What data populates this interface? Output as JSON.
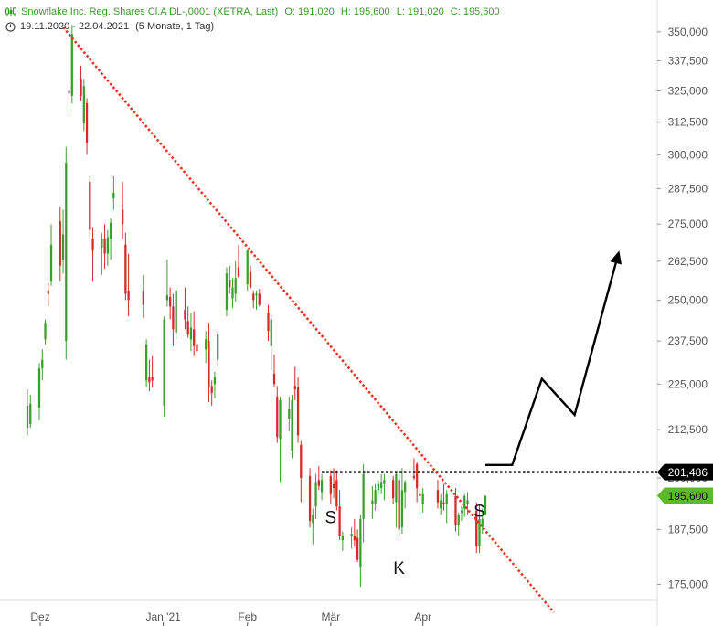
{
  "header": {
    "instrument": "Snowflake Inc. Reg. Shares Cl.A DL-,0001 (XETRA, Last)",
    "open": "O: 191,020",
    "high": "H: 195,600",
    "low": "L: 191,020",
    "close": "C: 195,600",
    "range": "19.11.2020 - 22.04.2021",
    "period": "(5 Monate, 1 Tag)",
    "chart_icon": "candlestick-icon",
    "clock_icon": "clock-icon"
  },
  "colors": {
    "up": "#3aa02c",
    "down": "#d42a2a",
    "trendline": "#e8321e",
    "grid_axis": "#dcdcdc",
    "resistance_tag": "#000000",
    "last_price_tag": "#5cb82c"
  },
  "chart_data": {
    "type": "candlestick",
    "x_ticks": [
      "Dez",
      "Jan '21",
      "Feb",
      "Mär",
      "Apr"
    ],
    "y_ticks": [
      "175,000",
      "187,500",
      "200,000",
      "212,500",
      "225,000",
      "237,500",
      "250,000",
      "262,500",
      "275,000",
      "287,500",
      "300,000",
      "312,500",
      "325,000",
      "337,500",
      "350,000"
    ],
    "ylim": [
      169,
      356
    ],
    "scale": "log",
    "price_tags": [
      {
        "label": "201,486",
        "value": 201.486,
        "style": "resistance"
      },
      {
        "label": "195,600",
        "value": 195.6,
        "style": "last"
      }
    ],
    "annotations": [
      {
        "text": "S",
        "date": "2021-03-01",
        "price": 190.5
      },
      {
        "text": "K",
        "date": "2021-03-24",
        "price": 178.8
      },
      {
        "text": "S",
        "date": "2021-04-20",
        "price": 192.0
      }
    ],
    "resistance_line": {
      "value": 201.486,
      "from": "2021-02-26",
      "to": "2021-06-30"
    },
    "trendline": {
      "from": {
        "date": "2020-12-01",
        "price": 352
      },
      "to": {
        "date": "2021-05-15",
        "price": 169
      }
    },
    "projection_arrow": [
      {
        "date": "2021-04-22",
        "price": 203.3
      },
      {
        "date": "2021-05-01",
        "price": 203.3
      },
      {
        "date": "2021-05-11",
        "price": 226.5
      },
      {
        "date": "2021-05-22",
        "price": 216.5
      },
      {
        "date": "2021-06-06",
        "price": 266
      }
    ],
    "candles": [
      {
        "date": "2020-11-19",
        "o": 213.0,
        "h": 223.5,
        "l": 211.0,
        "c": 219.0
      },
      {
        "date": "2020-11-20",
        "o": 214.0,
        "h": 222.0,
        "l": 213.0,
        "c": 219.5
      },
      {
        "date": "2020-11-23",
        "o": 218.5,
        "h": 231.0,
        "l": 215.0,
        "c": 229.5
      },
      {
        "date": "2020-11-24",
        "o": 229.5,
        "h": 235.0,
        "l": 226.0,
        "c": 232.0
      },
      {
        "date": "2020-11-25",
        "o": 238.0,
        "h": 244.0,
        "l": 236.5,
        "c": 243.0
      },
      {
        "date": "2020-11-26",
        "o": 253.0,
        "h": 255.5,
        "l": 248.0,
        "c": 252.0
      },
      {
        "date": "2020-11-27",
        "o": 256.0,
        "h": 275.0,
        "l": 254.5,
        "c": 268.0
      },
      {
        "date": "2020-11-30",
        "o": 276.0,
        "h": 281.0,
        "l": 256.0,
        "c": 261.0
      },
      {
        "date": "2020-12-01",
        "o": 263.0,
        "h": 280.0,
        "l": 258.5,
        "c": 271.5
      },
      {
        "date": "2020-12-02",
        "o": 237.5,
        "h": 303.0,
        "l": 232.0,
        "c": 297.0
      },
      {
        "date": "2020-12-03",
        "o": 324.0,
        "h": 326.5,
        "l": 316.0,
        "c": 325.0
      },
      {
        "date": "2020-12-04",
        "o": 323.0,
        "h": 353.0,
        "l": 320.0,
        "c": 349.0
      },
      {
        "date": "2020-12-07",
        "o": 330.0,
        "h": 335.5,
        "l": 321.0,
        "c": 323.0
      },
      {
        "date": "2020-12-08",
        "o": 312.0,
        "h": 330.0,
        "l": 309.0,
        "c": 327.0
      },
      {
        "date": "2020-12-09",
        "o": 320.0,
        "h": 322.0,
        "l": 300.0,
        "c": 304.5
      },
      {
        "date": "2020-12-10",
        "o": 290.0,
        "h": 292.0,
        "l": 270.0,
        "c": 273.0
      },
      {
        "date": "2020-12-11",
        "o": 270.0,
        "h": 274.0,
        "l": 256.0,
        "c": 266.0
      },
      {
        "date": "2020-12-14",
        "o": 267.0,
        "h": 272.0,
        "l": 258.0,
        "c": 270.0
      },
      {
        "date": "2020-12-15",
        "o": 270.0,
        "h": 275.0,
        "l": 260.0,
        "c": 265.0
      },
      {
        "date": "2020-12-16",
        "o": 265.0,
        "h": 273.0,
        "l": 261.0,
        "c": 270.5
      },
      {
        "date": "2020-12-17",
        "o": 270.0,
        "h": 277.0,
        "l": 263.0,
        "c": 275.5
      },
      {
        "date": "2020-12-18",
        "o": 284.0,
        "h": 292.0,
        "l": 280.0,
        "c": 286.0
      },
      {
        "date": "2020-12-21",
        "o": 280.0,
        "h": 290.0,
        "l": 270.0,
        "c": 275.0
      },
      {
        "date": "2020-12-22",
        "o": 268.0,
        "h": 272.0,
        "l": 250.0,
        "c": 252.0
      },
      {
        "date": "2020-12-23",
        "o": 253.0,
        "h": 265.0,
        "l": 245.0,
        "c": 250.0
      },
      {
        "date": "2020-12-28",
        "o": 253.0,
        "h": 258.0,
        "l": 244.5,
        "c": 248.5
      },
      {
        "date": "2020-12-29",
        "o": 226.0,
        "h": 238.0,
        "l": 224.0,
        "c": 236.5
      },
      {
        "date": "2020-12-30",
        "o": 227.0,
        "h": 232.0,
        "l": 223.0,
        "c": 225.5
      },
      {
        "date": "2020-12-31",
        "o": 227.0,
        "h": 233.0,
        "l": 224.0,
        "c": 226.0
      },
      {
        "date": "2021-01-04",
        "o": 219.0,
        "h": 245.0,
        "l": 216.0,
        "c": 244.0
      },
      {
        "date": "2021-01-05",
        "o": 250.0,
        "h": 263.0,
        "l": 248.0,
        "c": 251.5
      },
      {
        "date": "2021-01-06",
        "o": 251.0,
        "h": 254.0,
        "l": 244.0,
        "c": 248.0
      },
      {
        "date": "2021-01-07",
        "o": 248.0,
        "h": 252.0,
        "l": 236.0,
        "c": 241.0
      },
      {
        "date": "2021-01-08",
        "o": 240.0,
        "h": 254.0,
        "l": 238.0,
        "c": 253.0
      },
      {
        "date": "2021-01-11",
        "o": 247.0,
        "h": 254.0,
        "l": 241.0,
        "c": 244.0
      },
      {
        "date": "2021-01-12",
        "o": 243.5,
        "h": 248.0,
        "l": 238.5,
        "c": 239.5
      },
      {
        "date": "2021-01-13",
        "o": 238.0,
        "h": 246.0,
        "l": 234.5,
        "c": 241.5
      },
      {
        "date": "2021-01-14",
        "o": 241.0,
        "h": 246.5,
        "l": 233.0,
        "c": 236.0
      },
      {
        "date": "2021-01-15",
        "o": 236.5,
        "h": 239.0,
        "l": 232.5,
        "c": 234.5
      },
      {
        "date": "2021-01-18",
        "o": 235.0,
        "h": 240.5,
        "l": 231.0,
        "c": 238.0
      },
      {
        "date": "2021-01-19",
        "o": 237.5,
        "h": 243.0,
        "l": 220.0,
        "c": 224.0
      },
      {
        "date": "2021-01-20",
        "o": 224.5,
        "h": 226.0,
        "l": 219.0,
        "c": 222.5
      },
      {
        "date": "2021-01-21",
        "o": 225.0,
        "h": 228.5,
        "l": 221.0,
        "c": 227.0
      },
      {
        "date": "2021-01-22",
        "o": 232.0,
        "h": 240.5,
        "l": 230.0,
        "c": 239.5
      },
      {
        "date": "2021-01-25",
        "o": 247.0,
        "h": 260.5,
        "l": 245.0,
        "c": 258.5
      },
      {
        "date": "2021-01-26",
        "o": 256.5,
        "h": 261.0,
        "l": 252.0,
        "c": 254.0
      },
      {
        "date": "2021-01-27",
        "o": 250.5,
        "h": 257.0,
        "l": 247.5,
        "c": 254.0
      },
      {
        "date": "2021-01-28",
        "o": 252.0,
        "h": 262.5,
        "l": 249.5,
        "c": 257.0
      },
      {
        "date": "2021-01-29",
        "o": 260.5,
        "h": 268.0,
        "l": 257.0,
        "c": 257.5
      },
      {
        "date": "2021-02-01",
        "o": 255.0,
        "h": 266.5,
        "l": 253.0,
        "c": 266.0
      },
      {
        "date": "2021-02-02",
        "o": 259.0,
        "h": 261.0,
        "l": 253.5,
        "c": 254.0
      },
      {
        "date": "2021-02-03",
        "o": 252.0,
        "h": 253.0,
        "l": 247.5,
        "c": 250.0
      },
      {
        "date": "2021-02-04",
        "o": 251.5,
        "h": 253.0,
        "l": 247.0,
        "c": 252.0
      },
      {
        "date": "2021-02-05",
        "o": 252.0,
        "h": 253.5,
        "l": 248.0,
        "c": 248.5
      },
      {
        "date": "2021-02-08",
        "o": 246.0,
        "h": 248.5,
        "l": 237.5,
        "c": 240.5
      },
      {
        "date": "2021-02-09",
        "o": 236.0,
        "h": 245.5,
        "l": 229.0,
        "c": 244.0
      },
      {
        "date": "2021-02-10",
        "o": 228.0,
        "h": 233.5,
        "l": 224.0,
        "c": 225.0
      },
      {
        "date": "2021-02-11",
        "o": 221.5,
        "h": 224.5,
        "l": 209.0,
        "c": 210.5
      },
      {
        "date": "2021-02-12",
        "o": 210.0,
        "h": 221.5,
        "l": 199.0,
        "c": 220.5
      },
      {
        "date": "2021-02-15",
        "o": 215.5,
        "h": 221.5,
        "l": 212.0,
        "c": 218.0
      },
      {
        "date": "2021-02-16",
        "o": 207.0,
        "h": 222.0,
        "l": 205.0,
        "c": 220.5
      },
      {
        "date": "2021-02-17",
        "o": 224.5,
        "h": 230.0,
        "l": 220.5,
        "c": 223.5
      },
      {
        "date": "2021-02-18",
        "o": 224.0,
        "h": 227.0,
        "l": 209.0,
        "c": 211.0
      },
      {
        "date": "2021-02-19",
        "o": 208.5,
        "h": 209.5,
        "l": 194.0,
        "c": 200.0
      },
      {
        "date": "2021-02-22",
        "o": 200.5,
        "h": 202.5,
        "l": 188.0,
        "c": 189.5
      },
      {
        "date": "2021-02-23",
        "o": 189.0,
        "h": 192.5,
        "l": 184.0,
        "c": 191.0
      },
      {
        "date": "2021-02-24",
        "o": 193.0,
        "h": 201.0,
        "l": 190.0,
        "c": 199.0
      },
      {
        "date": "2021-02-25",
        "o": 199.5,
        "h": 203.0,
        "l": 197.0,
        "c": 198.0
      },
      {
        "date": "2021-02-26",
        "o": 196.5,
        "h": 201.0,
        "l": 194.5,
        "c": 199.5
      },
      {
        "date": "2021-03-01",
        "o": 200.5,
        "h": 202.0,
        "l": 193.5,
        "c": 196.0
      },
      {
        "date": "2021-03-02",
        "o": 198.5,
        "h": 202.5,
        "l": 195.0,
        "c": 197.5
      },
      {
        "date": "2021-03-03",
        "o": 199.5,
        "h": 202.0,
        "l": 192.0,
        "c": 193.0
      },
      {
        "date": "2021-03-04",
        "o": 193.0,
        "h": 197.0,
        "l": 185.0,
        "c": 186.0
      },
      {
        "date": "2021-03-05",
        "o": 185.0,
        "h": 187.0,
        "l": 182.5,
        "c": 186.0
      },
      {
        "date": "2021-03-08",
        "o": 186.0,
        "h": 188.0,
        "l": 183.0,
        "c": 186.5
      },
      {
        "date": "2021-03-09",
        "o": 186.0,
        "h": 190.0,
        "l": 183.5,
        "c": 185.0
      },
      {
        "date": "2021-03-10",
        "o": 185.5,
        "h": 187.5,
        "l": 180.0,
        "c": 180.5
      },
      {
        "date": "2021-03-11",
        "o": 179.0,
        "h": 191.0,
        "l": 174.5,
        "c": 190.0
      },
      {
        "date": "2021-03-12",
        "o": 190.0,
        "h": 203.5,
        "l": 184.5,
        "c": 201.0
      },
      {
        "date": "2021-03-15",
        "o": 193.5,
        "h": 198.0,
        "l": 190.0,
        "c": 194.5
      },
      {
        "date": "2021-03-16",
        "o": 193.5,
        "h": 198.5,
        "l": 192.0,
        "c": 197.0
      },
      {
        "date": "2021-03-17",
        "o": 197.0,
        "h": 199.5,
        "l": 196.0,
        "c": 198.5
      },
      {
        "date": "2021-03-18",
        "o": 197.5,
        "h": 201.0,
        "l": 196.0,
        "c": 199.0
      },
      {
        "date": "2021-03-19",
        "o": 198.5,
        "h": 201.0,
        "l": 194.5,
        "c": 199.5
      },
      {
        "date": "2021-03-22",
        "o": 199.5,
        "h": 200.5,
        "l": 193.5,
        "c": 195.0
      },
      {
        "date": "2021-03-23",
        "o": 194.0,
        "h": 201.5,
        "l": 188.0,
        "c": 201.0
      },
      {
        "date": "2021-03-24",
        "o": 199.5,
        "h": 201.0,
        "l": 186.0,
        "c": 187.5
      },
      {
        "date": "2021-03-25",
        "o": 188.0,
        "h": 202.5,
        "l": 186.5,
        "c": 197.0
      },
      {
        "date": "2021-03-26",
        "o": 196.5,
        "h": 199.5,
        "l": 192.5,
        "c": 199.0
      },
      {
        "date": "2021-03-29",
        "o": 200.5,
        "h": 205.0,
        "l": 199.5,
        "c": 200.0
      },
      {
        "date": "2021-03-30",
        "o": 203.5,
        "h": 204.0,
        "l": 194.0,
        "c": 197.5
      },
      {
        "date": "2021-03-31",
        "o": 196.0,
        "h": 197.5,
        "l": 191.0,
        "c": 195.5
      },
      {
        "date": "2021-04-01",
        "o": 193.5,
        "h": 197.5,
        "l": 191.5,
        "c": 196.0
      },
      {
        "date": "2021-04-06",
        "o": 197.0,
        "h": 199.5,
        "l": 192.5,
        "c": 194.0
      },
      {
        "date": "2021-04-07",
        "o": 192.5,
        "h": 196.0,
        "l": 191.0,
        "c": 194.5
      },
      {
        "date": "2021-04-08",
        "o": 194.0,
        "h": 198.5,
        "l": 192.0,
        "c": 193.5
      },
      {
        "date": "2021-04-09",
        "o": 193.5,
        "h": 197.0,
        "l": 189.0,
        "c": 196.0
      },
      {
        "date": "2021-04-12",
        "o": 195.5,
        "h": 197.5,
        "l": 187.0,
        "c": 188.5
      },
      {
        "date": "2021-04-13",
        "o": 188.5,
        "h": 191.5,
        "l": 186.0,
        "c": 191.0
      },
      {
        "date": "2021-04-14",
        "o": 191.5,
        "h": 193.0,
        "l": 189.5,
        "c": 192.0
      },
      {
        "date": "2021-04-15",
        "o": 192.5,
        "h": 196.0,
        "l": 190.5,
        "c": 195.5
      },
      {
        "date": "2021-04-16",
        "o": 193.5,
        "h": 196.5,
        "l": 191.0,
        "c": 194.5
      },
      {
        "date": "2021-04-19",
        "o": 192.0,
        "h": 194.0,
        "l": 182.0,
        "c": 183.5
      },
      {
        "date": "2021-04-20",
        "o": 183.5,
        "h": 193.5,
        "l": 182.0,
        "c": 190.0
      },
      {
        "date": "2021-04-21",
        "o": 188.0,
        "h": 192.5,
        "l": 186.5,
        "c": 190.0
      },
      {
        "date": "2021-04-22",
        "o": 191.02,
        "h": 195.6,
        "l": 191.02,
        "c": 195.6
      }
    ]
  }
}
